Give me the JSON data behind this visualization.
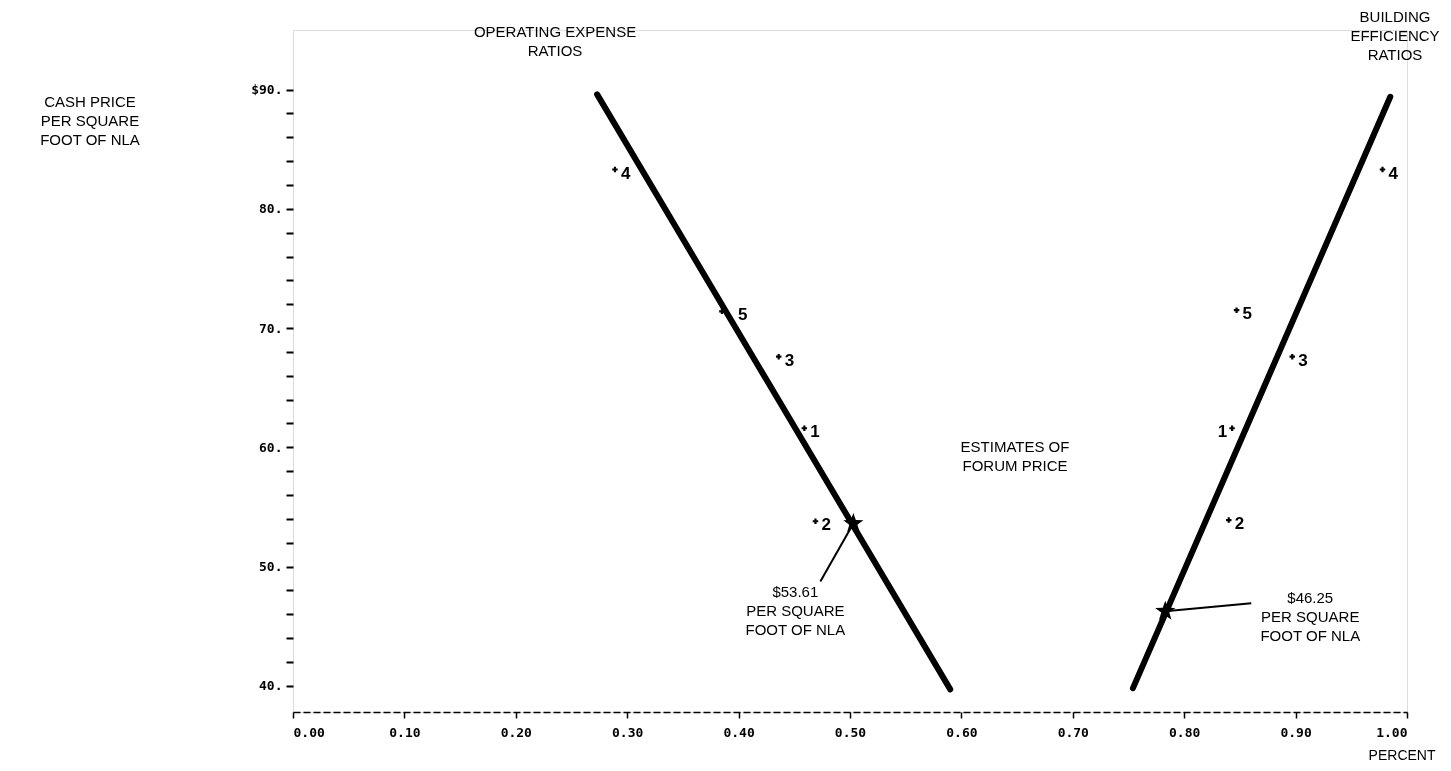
{
  "chart_data": {
    "type": "scatter",
    "xlabel": "PERCENT",
    "xlim": [
      0,
      1
    ],
    "ylim": [
      37.8,
      95
    ],
    "xticks": [
      {
        "value": 0,
        "label": "0.00"
      },
      {
        "value": 0.1,
        "label": "0.10"
      },
      {
        "value": 0.2,
        "label": "0.20"
      },
      {
        "value": 0.3,
        "label": "0.30"
      },
      {
        "value": 0.4,
        "label": "0.40"
      },
      {
        "value": 0.5,
        "label": "0.50"
      },
      {
        "value": 0.6,
        "label": "0.60"
      },
      {
        "value": 0.7,
        "label": "0.70"
      },
      {
        "value": 0.8,
        "label": "0.80"
      },
      {
        "value": 0.9,
        "label": "0.90"
      },
      {
        "value": 1,
        "label": "1.00"
      }
    ],
    "yticks": [
      {
        "value": 40,
        "label": "40."
      },
      {
        "value": 42,
        "label": null
      },
      {
        "value": 44,
        "label": null
      },
      {
        "value": 46,
        "label": null
      },
      {
        "value": 48,
        "label": null
      },
      {
        "value": 50,
        "label": "50."
      },
      {
        "value": 52,
        "label": null
      },
      {
        "value": 54,
        "label": null
      },
      {
        "value": 56,
        "label": null
      },
      {
        "value": 58,
        "label": null
      },
      {
        "value": 60,
        "label": "60."
      },
      {
        "value": 62,
        "label": null
      },
      {
        "value": 64,
        "label": null
      },
      {
        "value": 66,
        "label": null
      },
      {
        "value": 68,
        "label": null
      },
      {
        "value": 70,
        "label": "70."
      },
      {
        "value": 72,
        "label": null
      },
      {
        "value": 74,
        "label": null
      },
      {
        "value": 76,
        "label": null
      },
      {
        "value": 78,
        "label": null
      },
      {
        "value": 80,
        "label": "80."
      },
      {
        "value": 82,
        "label": null
      },
      {
        "value": 84,
        "label": null
      },
      {
        "value": 86,
        "label": null
      },
      {
        "value": 88,
        "label": null
      },
      {
        "value": 90,
        "label": "$90."
      }
    ],
    "grid": false,
    "series": [
      {
        "type": "scatter",
        "color": "#000000",
        "marker": "cross",
        "x": [
          0.289,
          0.385,
          0.436,
          0.459,
          0.469
        ],
        "values": [
          83.3,
          71.4,
          67.6,
          61.6,
          53.8
        ]
      },
      {
        "type": "line",
        "color": "#000000",
        "x": [
          0.273,
          0.59
        ],
        "values": [
          89.6,
          39.7
        ]
      },
      {
        "type": "scatter",
        "color": "#000000",
        "marker": "cross",
        "x": [
          0.978,
          0.847,
          0.897,
          0.843,
          0.84
        ],
        "values": [
          83.3,
          71.5,
          67.6,
          61.6,
          53.9
        ]
      },
      {
        "type": "line",
        "color": "#000000",
        "x": [
          0.754,
          0.985
        ],
        "values": [
          39.8,
          89.4
        ]
      },
      {
        "type": "scatter",
        "color": "#000000",
        "marker": "star",
        "x": [
          0.503,
          0.783
        ],
        "values": [
          53.61,
          46.25
        ]
      }
    ],
    "annotations": [
      "CASH PRICE\nPER SQUARE\nFOOT OF NLA",
      "OPERATING EXPENSE\nRATIOS",
      "BUILDING\nEFFICIENCY\nRATIOS",
      "ESTIMATES OF\nFORUM PRICE",
      {
        "text": "$53.61\nPER SQUARE\nFOOT OF NLA",
        "x": 0.503,
        "y": 53.61
      },
      {
        "text": "$46.25\nPER SQUARE\nFOOT OF NLA",
        "x": 0.783,
        "y": 46.25
      },
      {
        "text": "4",
        "x": 0.289,
        "y": 83.3
      },
      {
        "text": "5",
        "x": 0.385,
        "y": 71.4
      },
      {
        "text": "3",
        "x": 0.436,
        "y": 67.6
      },
      {
        "text": "1",
        "x": 0.459,
        "y": 61.6
      },
      {
        "text": "2",
        "x": 0.469,
        "y": 53.8
      },
      {
        "text": "4",
        "x": 0.978,
        "y": 83.3
      },
      {
        "text": "5",
        "x": 0.847,
        "y": 71.5
      },
      {
        "text": "3",
        "x": 0.897,
        "y": 67.6
      },
      {
        "text": "1",
        "x": 0.843,
        "y": 61.6
      },
      {
        "text": "2",
        "x": 0.84,
        "y": 53.9
      }
    ]
  }
}
